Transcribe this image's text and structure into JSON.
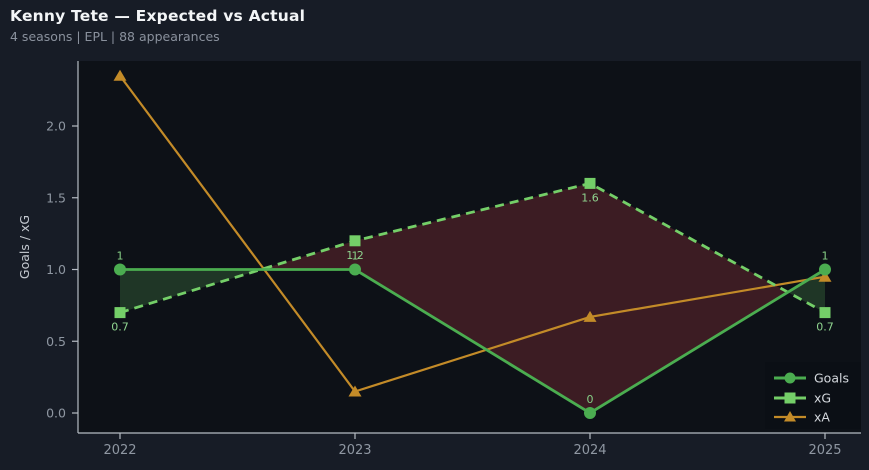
{
  "header": {
    "title": "Kenny Tete — Expected vs Actual",
    "subtitle": "4 seasons | EPL | 88 appearances"
  },
  "colors": {
    "page_background": "#171c26",
    "plot_background": "#0d1117",
    "legend_background": "#0b0f15",
    "spine": "#b6bcc4",
    "tick_label": "#8f97a2",
    "axis_label": "#c3c8cf",
    "title": "#f3f5f7",
    "subtitle": "#8a919d",
    "legend_text": "#d4d8dd"
  },
  "chart_data": {
    "type": "line",
    "title": "Kenny Tete — Expected vs Actual",
    "subtitle": "4 seasons | EPL | 88 appearances",
    "categories": [
      2022,
      2023,
      2024,
      2025
    ],
    "xlabel": "",
    "ylabel": "Goals / xG",
    "yticks": [
      0.0,
      0.5,
      1.0,
      1.5,
      2.0
    ],
    "ylim": [
      -0.14,
      2.45
    ],
    "grid": false,
    "legend_position": "lower right",
    "series": [
      {
        "name": "Goals",
        "marker": "circle",
        "line_style": "solid",
        "color": "#4bad50",
        "label_color": "#86cf86",
        "values": [
          1,
          1,
          0,
          1
        ],
        "point_labels": [
          "1",
          "1",
          "0",
          "1"
        ],
        "label_side": "above"
      },
      {
        "name": "xG",
        "marker": "square",
        "line_style": "dashed",
        "color": "#74cf68",
        "label_color": "#8fd48f",
        "values": [
          0.7,
          1.2,
          1.6,
          0.7
        ],
        "point_labels": [
          "0.7",
          "1.2",
          "1.6",
          "0.7"
        ],
        "label_side": "below"
      },
      {
        "name": "xA",
        "marker": "triangle",
        "line_style": "solid",
        "color": "#c38b28",
        "label_color": null,
        "values": [
          2.35,
          0.15,
          0.67,
          0.95
        ],
        "point_labels": [
          null,
          null,
          null,
          null
        ],
        "label_side": "none"
      }
    ],
    "fill_between": {
      "series_a": "Goals",
      "series_b": "xG",
      "color_a_above": "rgba(106,205,100,0.20)",
      "color_b_above": "rgba(205,62,70,0.25)"
    }
  }
}
